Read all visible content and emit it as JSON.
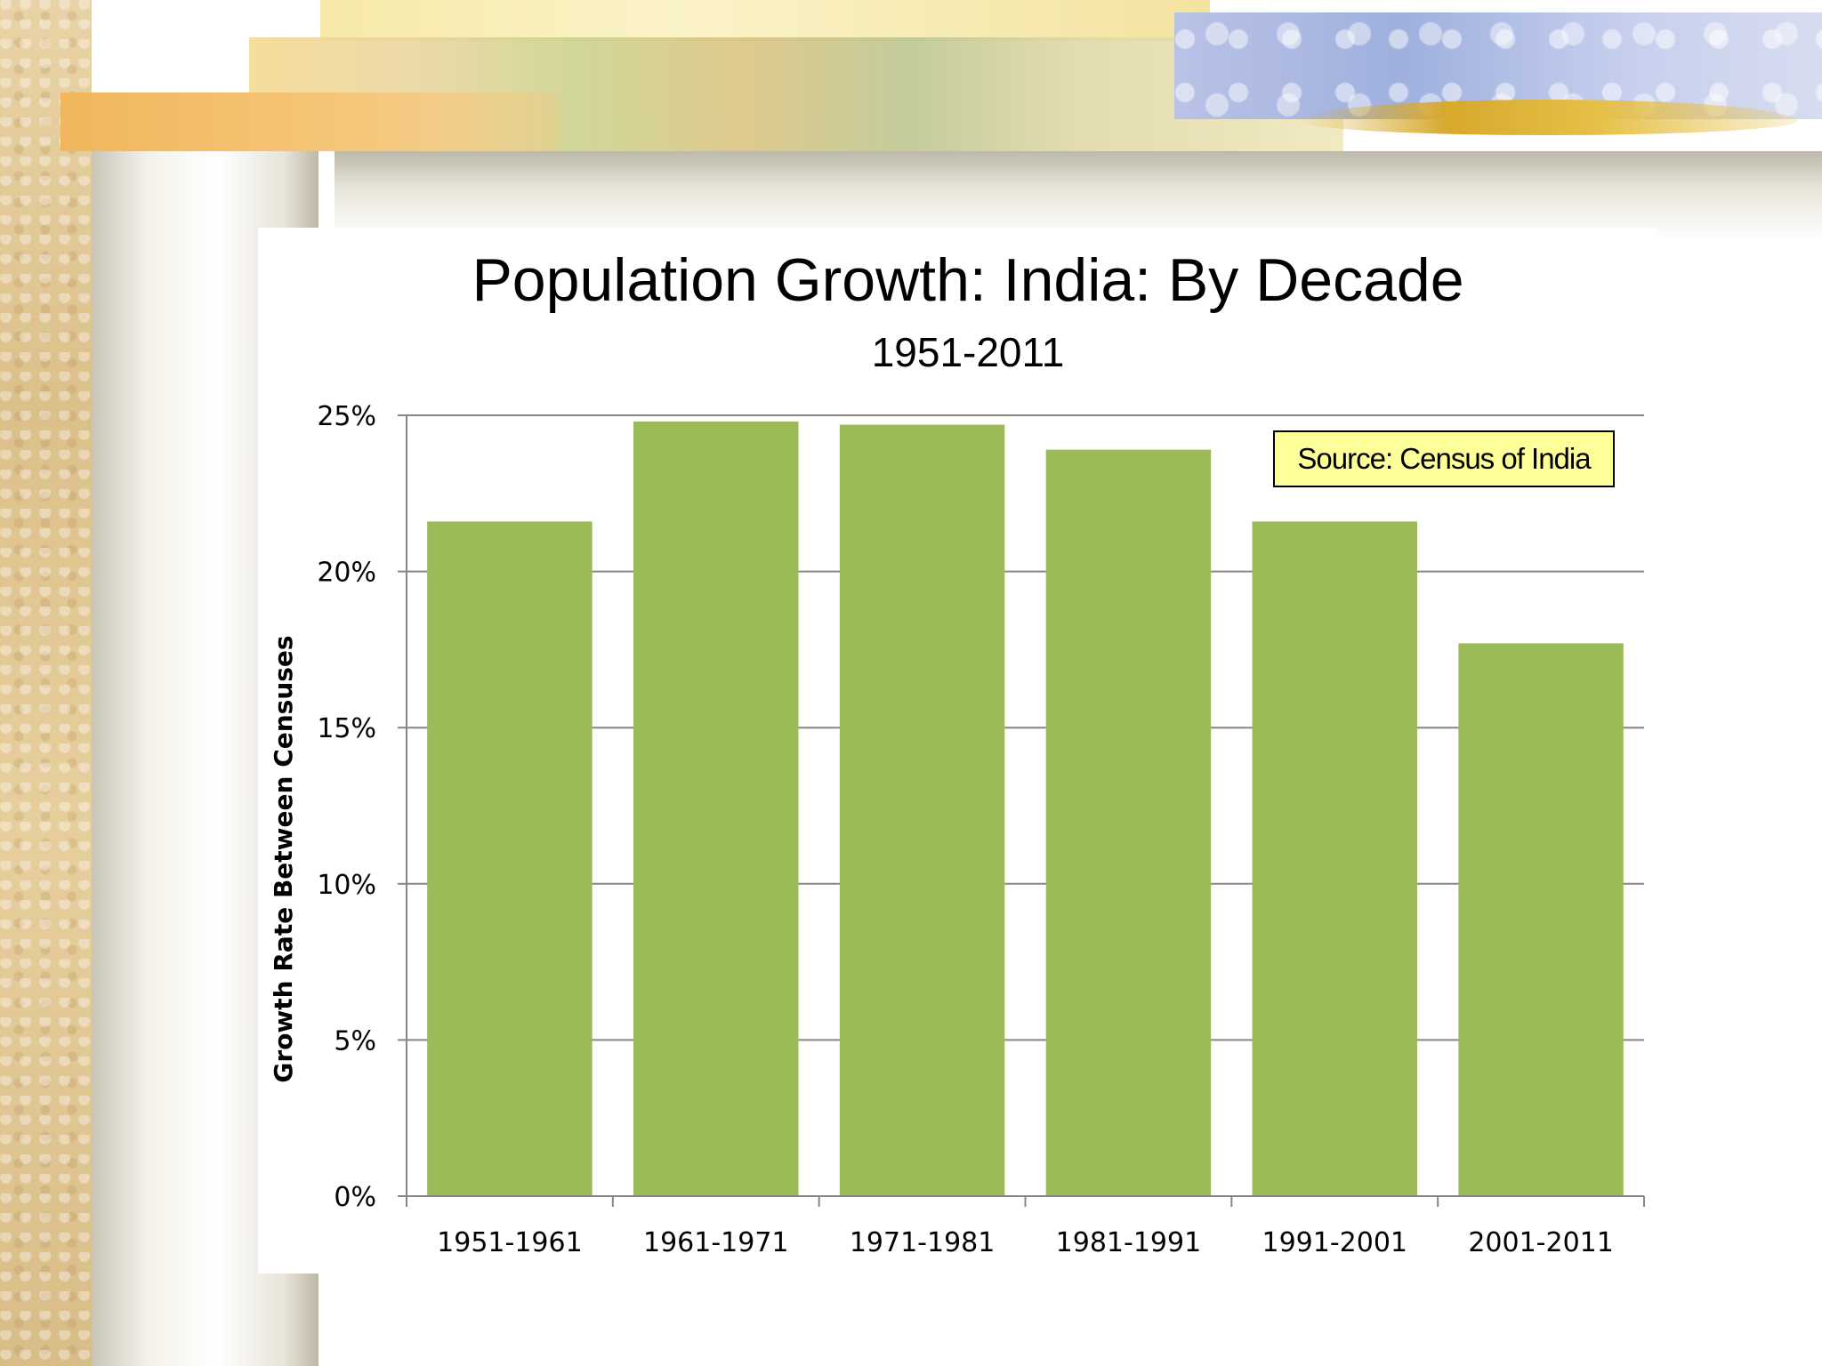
{
  "slide": {
    "background": "#ffffff"
  },
  "chart_data": {
    "type": "bar",
    "title": "Population Growth: India: By Decade",
    "subtitle": "1951-2011",
    "xlabel": "",
    "ylabel": "Growth Rate Between Censuses",
    "categories": [
      "1951-1961",
      "1961-1971",
      "1971-1981",
      "1981-1991",
      "1991-2001",
      "2001-2011"
    ],
    "values": [
      21.6,
      24.8,
      24.7,
      23.9,
      21.6,
      17.7
    ],
    "ylim": [
      0,
      25
    ],
    "yticks": [
      0,
      5,
      10,
      15,
      20,
      25
    ],
    "ytick_labels": [
      "0%",
      "5%",
      "10%",
      "15%",
      "20%",
      "25%"
    ],
    "grid": true,
    "bar_color": "#9bbb59",
    "annotation": "Source: Census of India",
    "annotation_color": "#ffff99"
  }
}
